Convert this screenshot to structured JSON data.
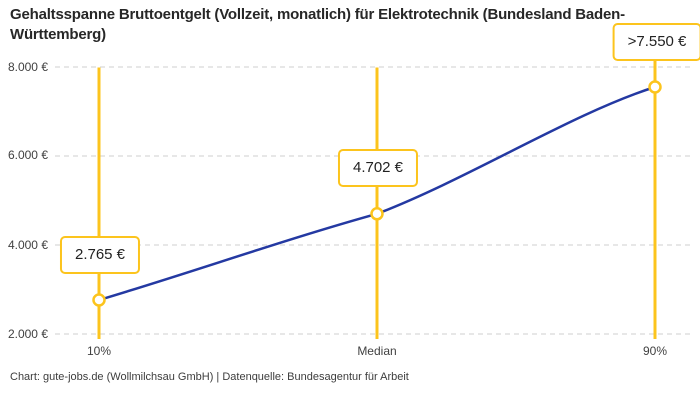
{
  "title": "Gehaltsspanne Bruttoentgelt (Vollzeit, monatlich) für Elektrotechnik (Bundesland Baden-Württemberg)",
  "footer": "Chart: gute-jobs.de (Wollmilchsau GmbH) | Datenquelle: Bundesagentur für Arbeit",
  "colors": {
    "accent_yellow": "#FCC41D",
    "line_blue": "#2439A2",
    "grid": "#CFCFCF",
    "title_text": "#272727",
    "axis_text": "#414141"
  },
  "chart_data": {
    "type": "line",
    "title": "Gehaltsspanne Bruttoentgelt (Vollzeit, monatlich) für Elektrotechnik (Bundesland Baden-Württemberg)",
    "categories": [
      "10%",
      "Median",
      "90%"
    ],
    "values": [
      2765,
      4702,
      7550
    ],
    "value_labels": [
      "2.765 €",
      "4.702 €",
      ">7.550 €"
    ],
    "series": [
      {
        "name": "Bruttoentgelt",
        "values": [
          2765,
          4702,
          7550
        ]
      }
    ],
    "yticks": [
      2000,
      4000,
      6000,
      8000
    ],
    "ytick_labels": [
      "2.000 €",
      "4.000 €",
      "6.000 €",
      "8.000 €"
    ],
    "ylim": [
      2000,
      8000
    ],
    "xlabel": "",
    "ylabel": "",
    "grid": "horizontal-dashed",
    "legend": "none",
    "marker_style": "open-circle-on-vertical-rule"
  }
}
